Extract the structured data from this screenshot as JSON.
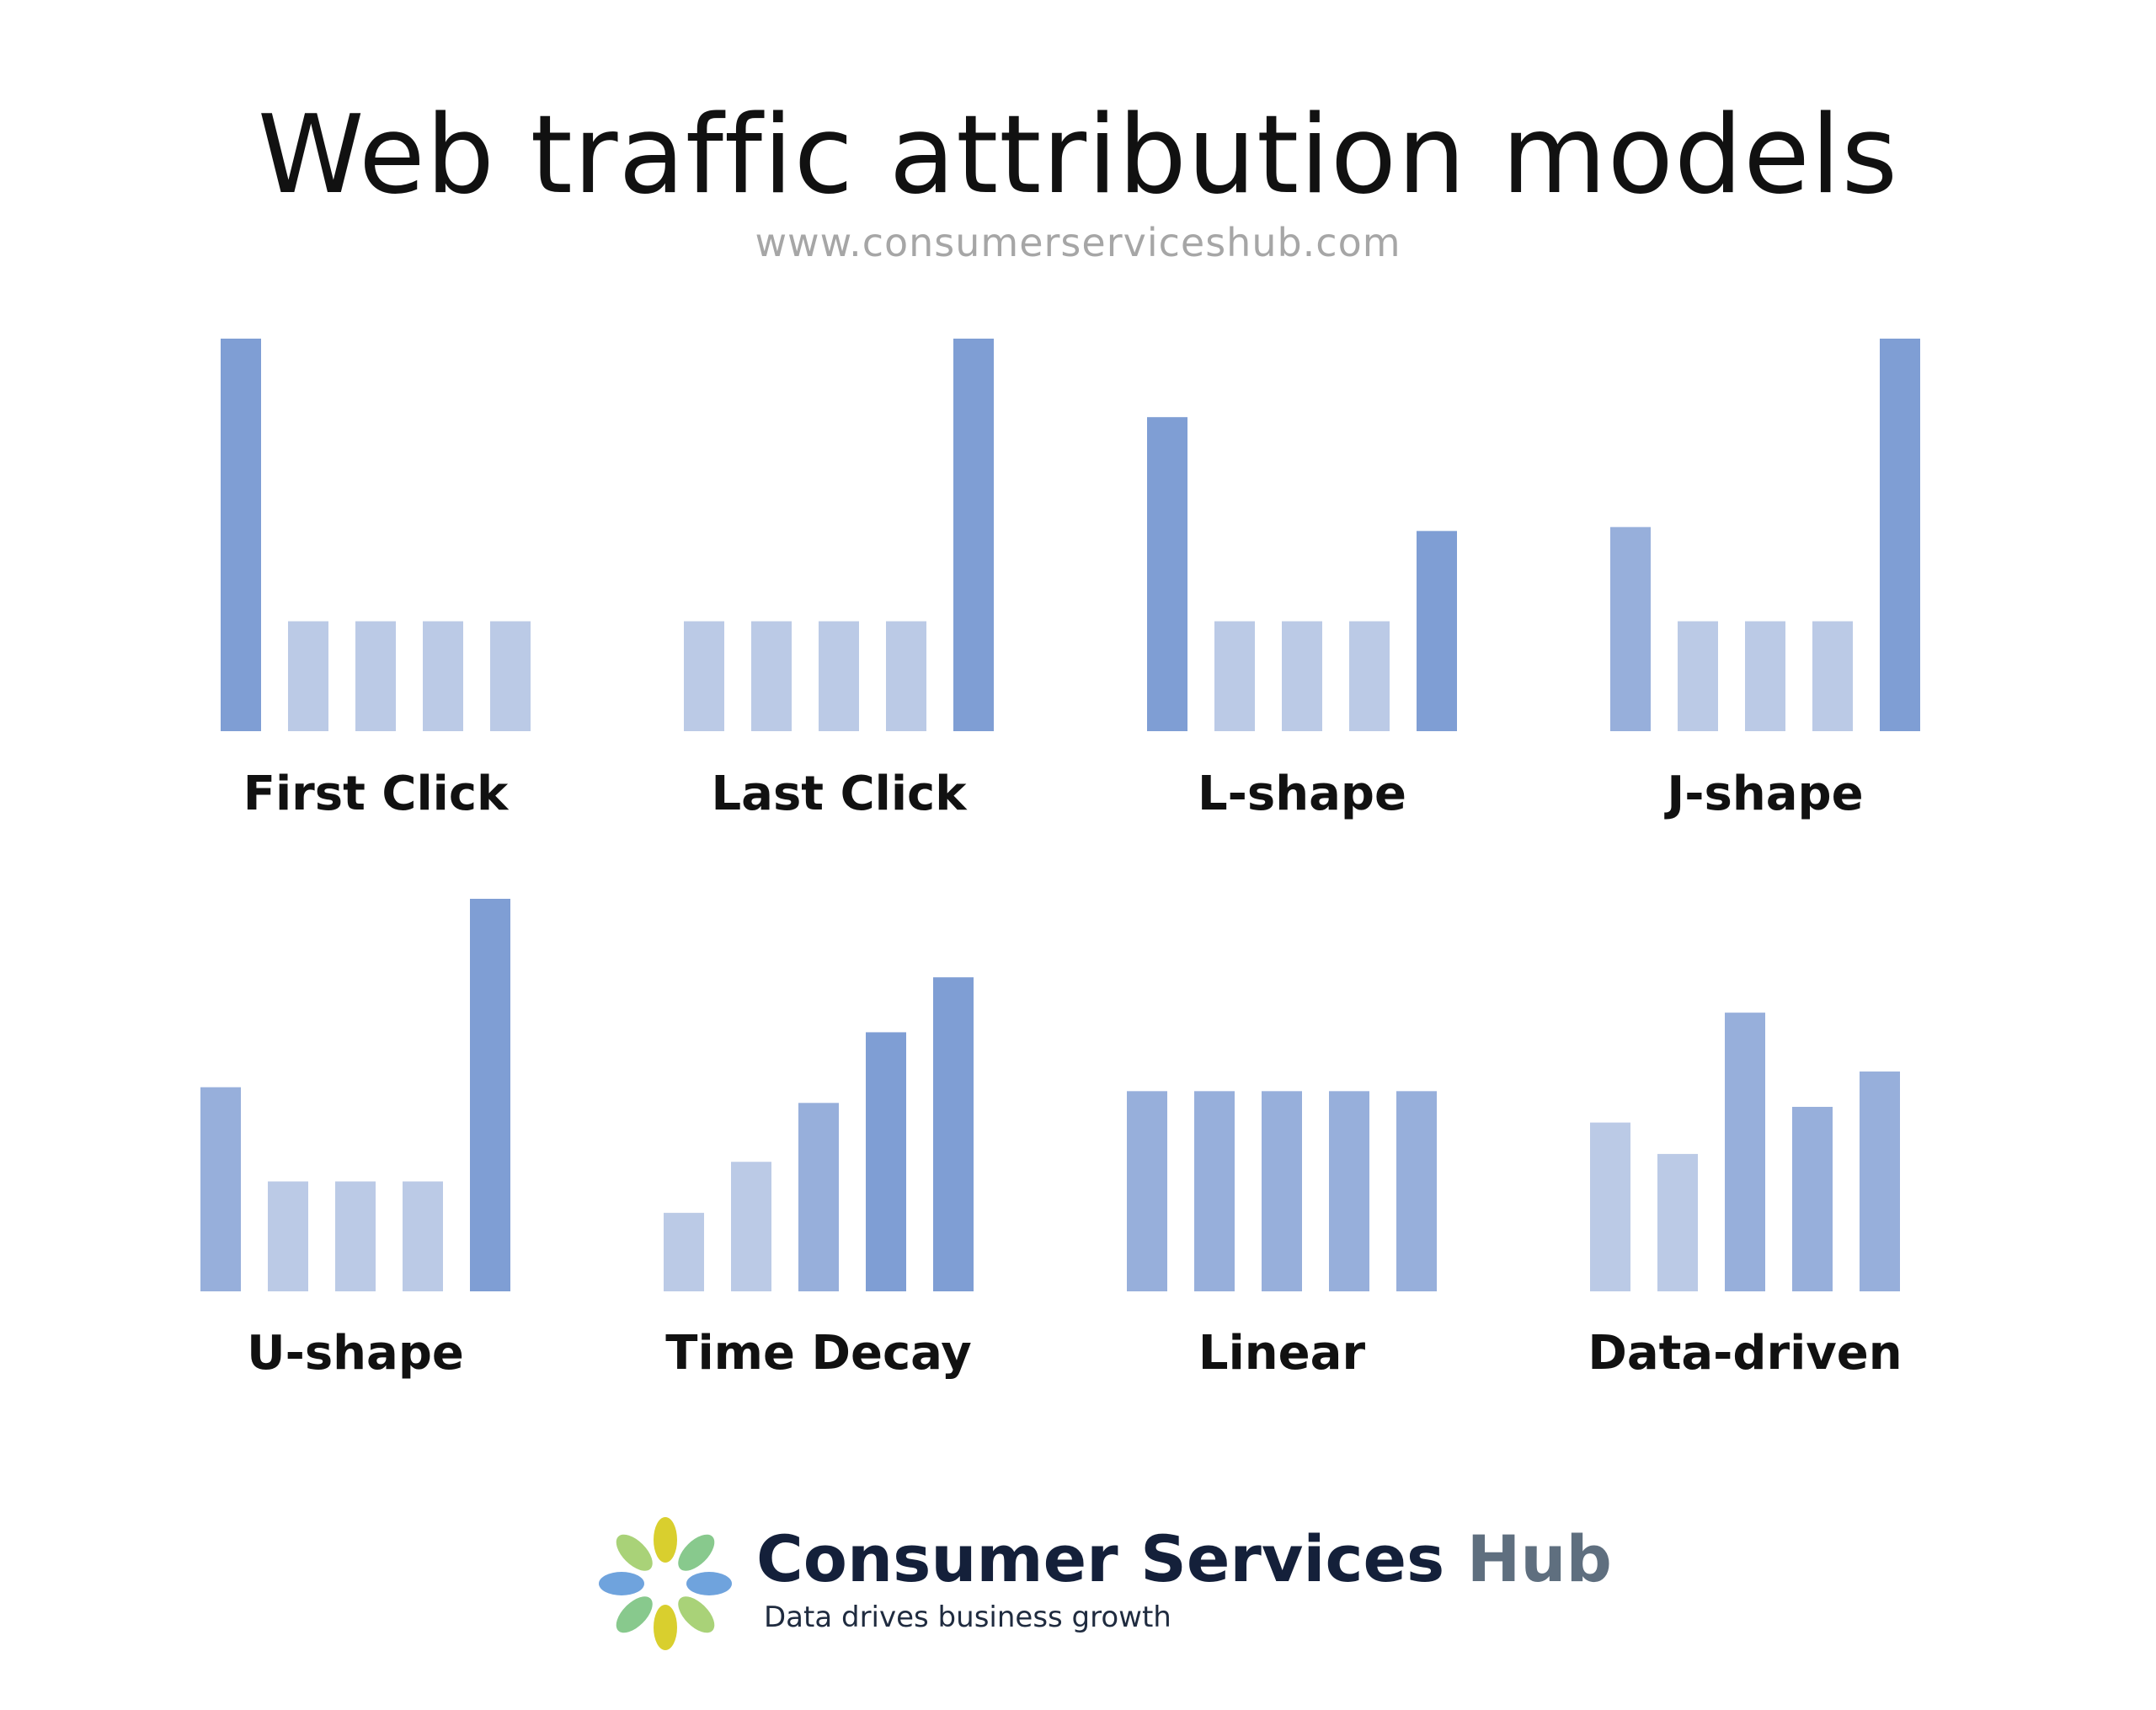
{
  "header": {
    "title": "Web traffic attribution models",
    "subtitle": "www.consumerserviceshub.com"
  },
  "colors": {
    "dark": "#7f9ed4",
    "mid": "#97afdb",
    "light": "#bbcae6"
  },
  "chart_data": [
    {
      "type": "bar",
      "title": "First Click",
      "categories": [
        "",
        "",
        "",
        "",
        ""
      ],
      "values": [
        100,
        28,
        28,
        28,
        28
      ],
      "shades": [
        "dark",
        "light",
        "light",
        "light",
        "light"
      ],
      "ylim": [
        0,
        100
      ]
    },
    {
      "type": "bar",
      "title": "Last Click",
      "categories": [
        "",
        "",
        "",
        "",
        ""
      ],
      "values": [
        28,
        28,
        28,
        28,
        100
      ],
      "shades": [
        "light",
        "light",
        "light",
        "light",
        "dark"
      ],
      "ylim": [
        0,
        100
      ]
    },
    {
      "type": "bar",
      "title": "L-shape",
      "categories": [
        "",
        "",
        "",
        "",
        ""
      ],
      "values": [
        80,
        28,
        28,
        28,
        51
      ],
      "shades": [
        "dark",
        "light",
        "light",
        "light",
        "dark"
      ],
      "ylim": [
        0,
        100
      ]
    },
    {
      "type": "bar",
      "title": "J-shape",
      "categories": [
        "",
        "",
        "",
        "",
        ""
      ],
      "values": [
        52,
        28,
        28,
        28,
        100
      ],
      "shades": [
        "mid",
        "light",
        "light",
        "light",
        "dark"
      ],
      "ylim": [
        0,
        100
      ]
    },
    {
      "type": "bar",
      "title": "U-shape",
      "categories": [
        "",
        "",
        "",
        "",
        ""
      ],
      "values": [
        52,
        28,
        28,
        28,
        100
      ],
      "shades": [
        "mid",
        "light",
        "light",
        "light",
        "dark"
      ],
      "ylim": [
        0,
        100
      ]
    },
    {
      "type": "bar",
      "title": "Time Decay",
      "categories": [
        "",
        "",
        "",
        "",
        ""
      ],
      "values": [
        20,
        33,
        48,
        66,
        80
      ],
      "shades": [
        "light",
        "light",
        "mid",
        "dark",
        "dark"
      ],
      "ylim": [
        0,
        100
      ]
    },
    {
      "type": "bar",
      "title": "Linear",
      "categories": [
        "",
        "",
        "",
        "",
        ""
      ],
      "values": [
        51,
        51,
        51,
        51,
        51
      ],
      "shades": [
        "mid",
        "mid",
        "mid",
        "mid",
        "mid"
      ],
      "ylim": [
        0,
        100
      ]
    },
    {
      "type": "bar",
      "title": "Data-driven",
      "categories": [
        "",
        "",
        "",
        "",
        ""
      ],
      "values": [
        43,
        35,
        71,
        47,
        56
      ],
      "shades": [
        "light",
        "light",
        "mid",
        "mid",
        "mid"
      ],
      "ylim": [
        0,
        100
      ]
    }
  ],
  "logo": {
    "brand_main": "Consumer Services",
    "brand_hub": "Hub",
    "tagline": "Data drives business growth",
    "petal_colors": [
      "#d9cf2e",
      "#88c98d",
      "#6fa3dd",
      "#a9d278",
      "#d9cf2e",
      "#88c98d",
      "#6fa3dd",
      "#a9d278"
    ]
  }
}
